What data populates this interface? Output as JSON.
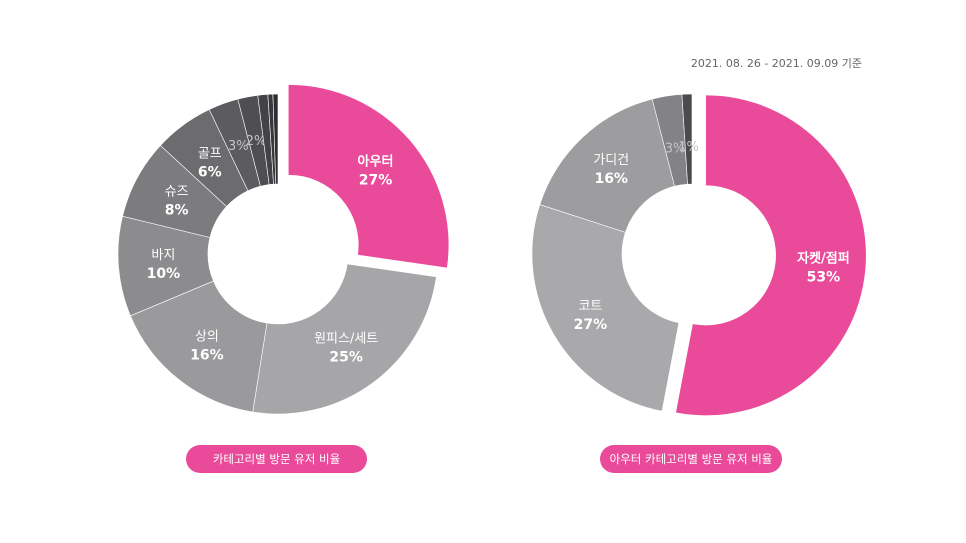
{
  "date_range": "2021. 08. 26 - 2021. 09.09 기준",
  "chart_data": [
    {
      "type": "pie",
      "title": "카테고리별 방문 유저 비율",
      "slices": [
        {
          "label": "아우터",
          "value": 27,
          "value_label": "27%",
          "color": "#e94b9a",
          "highlight": true
        },
        {
          "label": "원피스/세트",
          "value": 25,
          "value_label": "25%",
          "color": "#a6a6a8"
        },
        {
          "label": "상의",
          "value": 16,
          "value_label": "16%",
          "color": "#9a9a9c"
        },
        {
          "label": "바지",
          "value": 10,
          "value_label": "10%",
          "color": "#8c8c8e"
        },
        {
          "label": "슈즈",
          "value": 8,
          "value_label": "8%",
          "color": "#7c7c7f"
        },
        {
          "label": "골프",
          "value": 6,
          "value_label": "6%",
          "color": "#6c6c6f"
        },
        {
          "label": "",
          "value": 3,
          "value_label": "3%",
          "color": "#5c5c60"
        },
        {
          "label": "",
          "value": 2,
          "value_label": "2%",
          "color": "#4e4e53"
        },
        {
          "label": "",
          "value": 1,
          "value_label": "",
          "color": "#424247"
        },
        {
          "label": "",
          "value": 0.5,
          "value_label": "",
          "color": "#37373c"
        },
        {
          "label": "",
          "value": 0.5,
          "value_label": "",
          "color": "#2d2d32"
        }
      ]
    },
    {
      "type": "pie",
      "title": "아우터 카테고리별 방문 유저 비율",
      "slices": [
        {
          "label": "자켓/점퍼",
          "value": 53,
          "value_label": "53%",
          "color": "#e94b9a",
          "highlight": true
        },
        {
          "label": "코트",
          "value": 27,
          "value_label": "27%",
          "color": "#a9a9ab"
        },
        {
          "label": "가디건",
          "value": 16,
          "value_label": "16%",
          "color": "#9d9d9f"
        },
        {
          "label": "",
          "value": 3,
          "value_label": "3%",
          "color": "#838386"
        },
        {
          "label": "",
          "value": 1,
          "value_label": "1%",
          "color": "#4a4a4f"
        }
      ]
    }
  ]
}
